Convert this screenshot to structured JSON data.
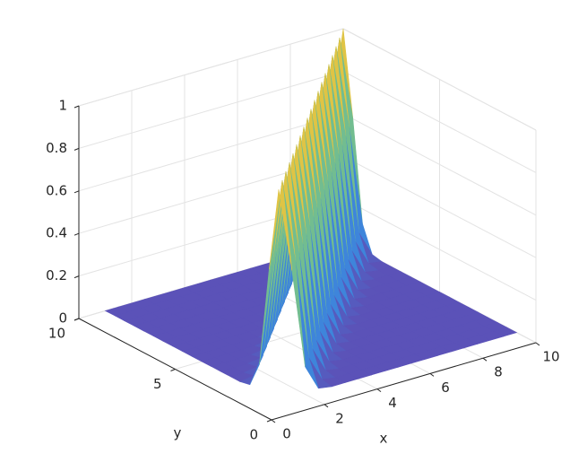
{
  "chart_data": {
    "type": "surface",
    "x": [
      1,
      1.5,
      2,
      2.5,
      3,
      3.5,
      4,
      4.5,
      5,
      5.5,
      6,
      6.5,
      7,
      7.5,
      8,
      8.5,
      9,
      9.5,
      10
    ],
    "y": [
      1,
      1.5,
      2,
      2.5,
      3,
      3.5,
      4,
      4.5,
      5,
      5.5,
      6,
      6.5,
      7,
      7.5,
      8,
      8.5,
      9,
      9.5,
      10
    ],
    "z": [
      [
        1,
        0.6,
        0.13,
        0.01,
        0,
        0,
        0,
        0,
        0,
        0,
        0,
        0,
        0,
        0,
        0,
        0,
        0,
        0,
        0
      ],
      [
        0.6,
        1,
        0.6,
        0.13,
        0.01,
        0,
        0,
        0,
        0,
        0,
        0,
        0,
        0,
        0,
        0,
        0,
        0,
        0,
        0
      ],
      [
        0.13,
        0.6,
        1,
        0.6,
        0.13,
        0.01,
        0,
        0,
        0,
        0,
        0,
        0,
        0,
        0,
        0,
        0,
        0,
        0,
        0
      ],
      [
        0.01,
        0.13,
        0.6,
        1,
        0.6,
        0.13,
        0.01,
        0,
        0,
        0,
        0,
        0,
        0,
        0,
        0,
        0,
        0,
        0,
        0
      ],
      [
        0,
        0.01,
        0.13,
        0.6,
        1,
        0.6,
        0.13,
        0.01,
        0,
        0,
        0,
        0,
        0,
        0,
        0,
        0,
        0,
        0,
        0
      ],
      [
        0,
        0,
        0.01,
        0.13,
        0.6,
        1,
        0.6,
        0.13,
        0.01,
        0,
        0,
        0,
        0,
        0,
        0,
        0,
        0,
        0,
        0
      ],
      [
        0,
        0,
        0,
        0.01,
        0.13,
        0.6,
        1,
        0.6,
        0.13,
        0.01,
        0,
        0,
        0,
        0,
        0,
        0,
        0,
        0,
        0
      ],
      [
        0,
        0,
        0,
        0,
        0.01,
        0.13,
        0.6,
        1,
        0.6,
        0.13,
        0.01,
        0,
        0,
        0,
        0,
        0,
        0,
        0,
        0
      ],
      [
        0,
        0,
        0,
        0,
        0,
        0.01,
        0.13,
        0.6,
        1,
        0.6,
        0.13,
        0.01,
        0,
        0,
        0,
        0,
        0,
        0,
        0
      ],
      [
        0,
        0,
        0,
        0,
        0,
        0,
        0.01,
        0.13,
        0.6,
        1,
        0.6,
        0.13,
        0.01,
        0,
        0,
        0,
        0,
        0,
        0
      ],
      [
        0,
        0,
        0,
        0,
        0,
        0,
        0,
        0.01,
        0.13,
        0.6,
        1,
        0.6,
        0.13,
        0.01,
        0,
        0,
        0,
        0,
        0
      ],
      [
        0,
        0,
        0,
        0,
        0,
        0,
        0,
        0,
        0.01,
        0.13,
        0.6,
        1,
        0.6,
        0.13,
        0.01,
        0,
        0,
        0,
        0
      ],
      [
        0,
        0,
        0,
        0,
        0,
        0,
        0,
        0,
        0,
        0.01,
        0.13,
        0.6,
        1,
        0.6,
        0.13,
        0.01,
        0,
        0,
        0
      ],
      [
        0,
        0,
        0,
        0,
        0,
        0,
        0,
        0,
        0,
        0,
        0.01,
        0.13,
        0.6,
        1,
        0.6,
        0.13,
        0.01,
        0,
        0
      ],
      [
        0,
        0,
        0,
        0,
        0,
        0,
        0,
        0,
        0,
        0,
        0,
        0.01,
        0.13,
        0.6,
        1,
        0.6,
        0.13,
        0.01,
        0
      ],
      [
        0,
        0,
        0,
        0,
        0,
        0,
        0,
        0,
        0,
        0,
        0,
        0,
        0.01,
        0.13,
        0.6,
        1,
        0.6,
        0.13,
        0.01
      ],
      [
        0,
        0,
        0,
        0,
        0,
        0,
        0,
        0,
        0,
        0,
        0,
        0,
        0,
        0.01,
        0.13,
        0.6,
        1,
        0.6,
        0.13
      ],
      [
        0,
        0,
        0,
        0,
        0,
        0,
        0,
        0,
        0,
        0,
        0,
        0,
        0,
        0,
        0.01,
        0.13,
        0.6,
        1,
        0.6
      ],
      [
        0,
        0,
        0,
        0,
        0,
        0,
        0,
        0,
        0,
        0,
        0,
        0,
        0,
        0,
        0,
        0.01,
        0.13,
        0.6,
        1
      ]
    ],
    "xlim": [
      0,
      10
    ],
    "ylim": [
      0,
      10
    ],
    "zlim": [
      0,
      1
    ],
    "xticks": [
      0,
      2,
      4,
      6,
      8,
      10
    ],
    "yticks": [
      0,
      5,
      10
    ],
    "zticks": [
      0,
      0.2,
      0.4,
      0.6,
      0.8,
      1
    ],
    "xlabel": "x",
    "ylabel": "y",
    "grid": true,
    "colormap": [
      "#5b52b8",
      "#3a8de0",
      "#3fbfb0",
      "#d9b84e",
      "#f8f520"
    ]
  }
}
